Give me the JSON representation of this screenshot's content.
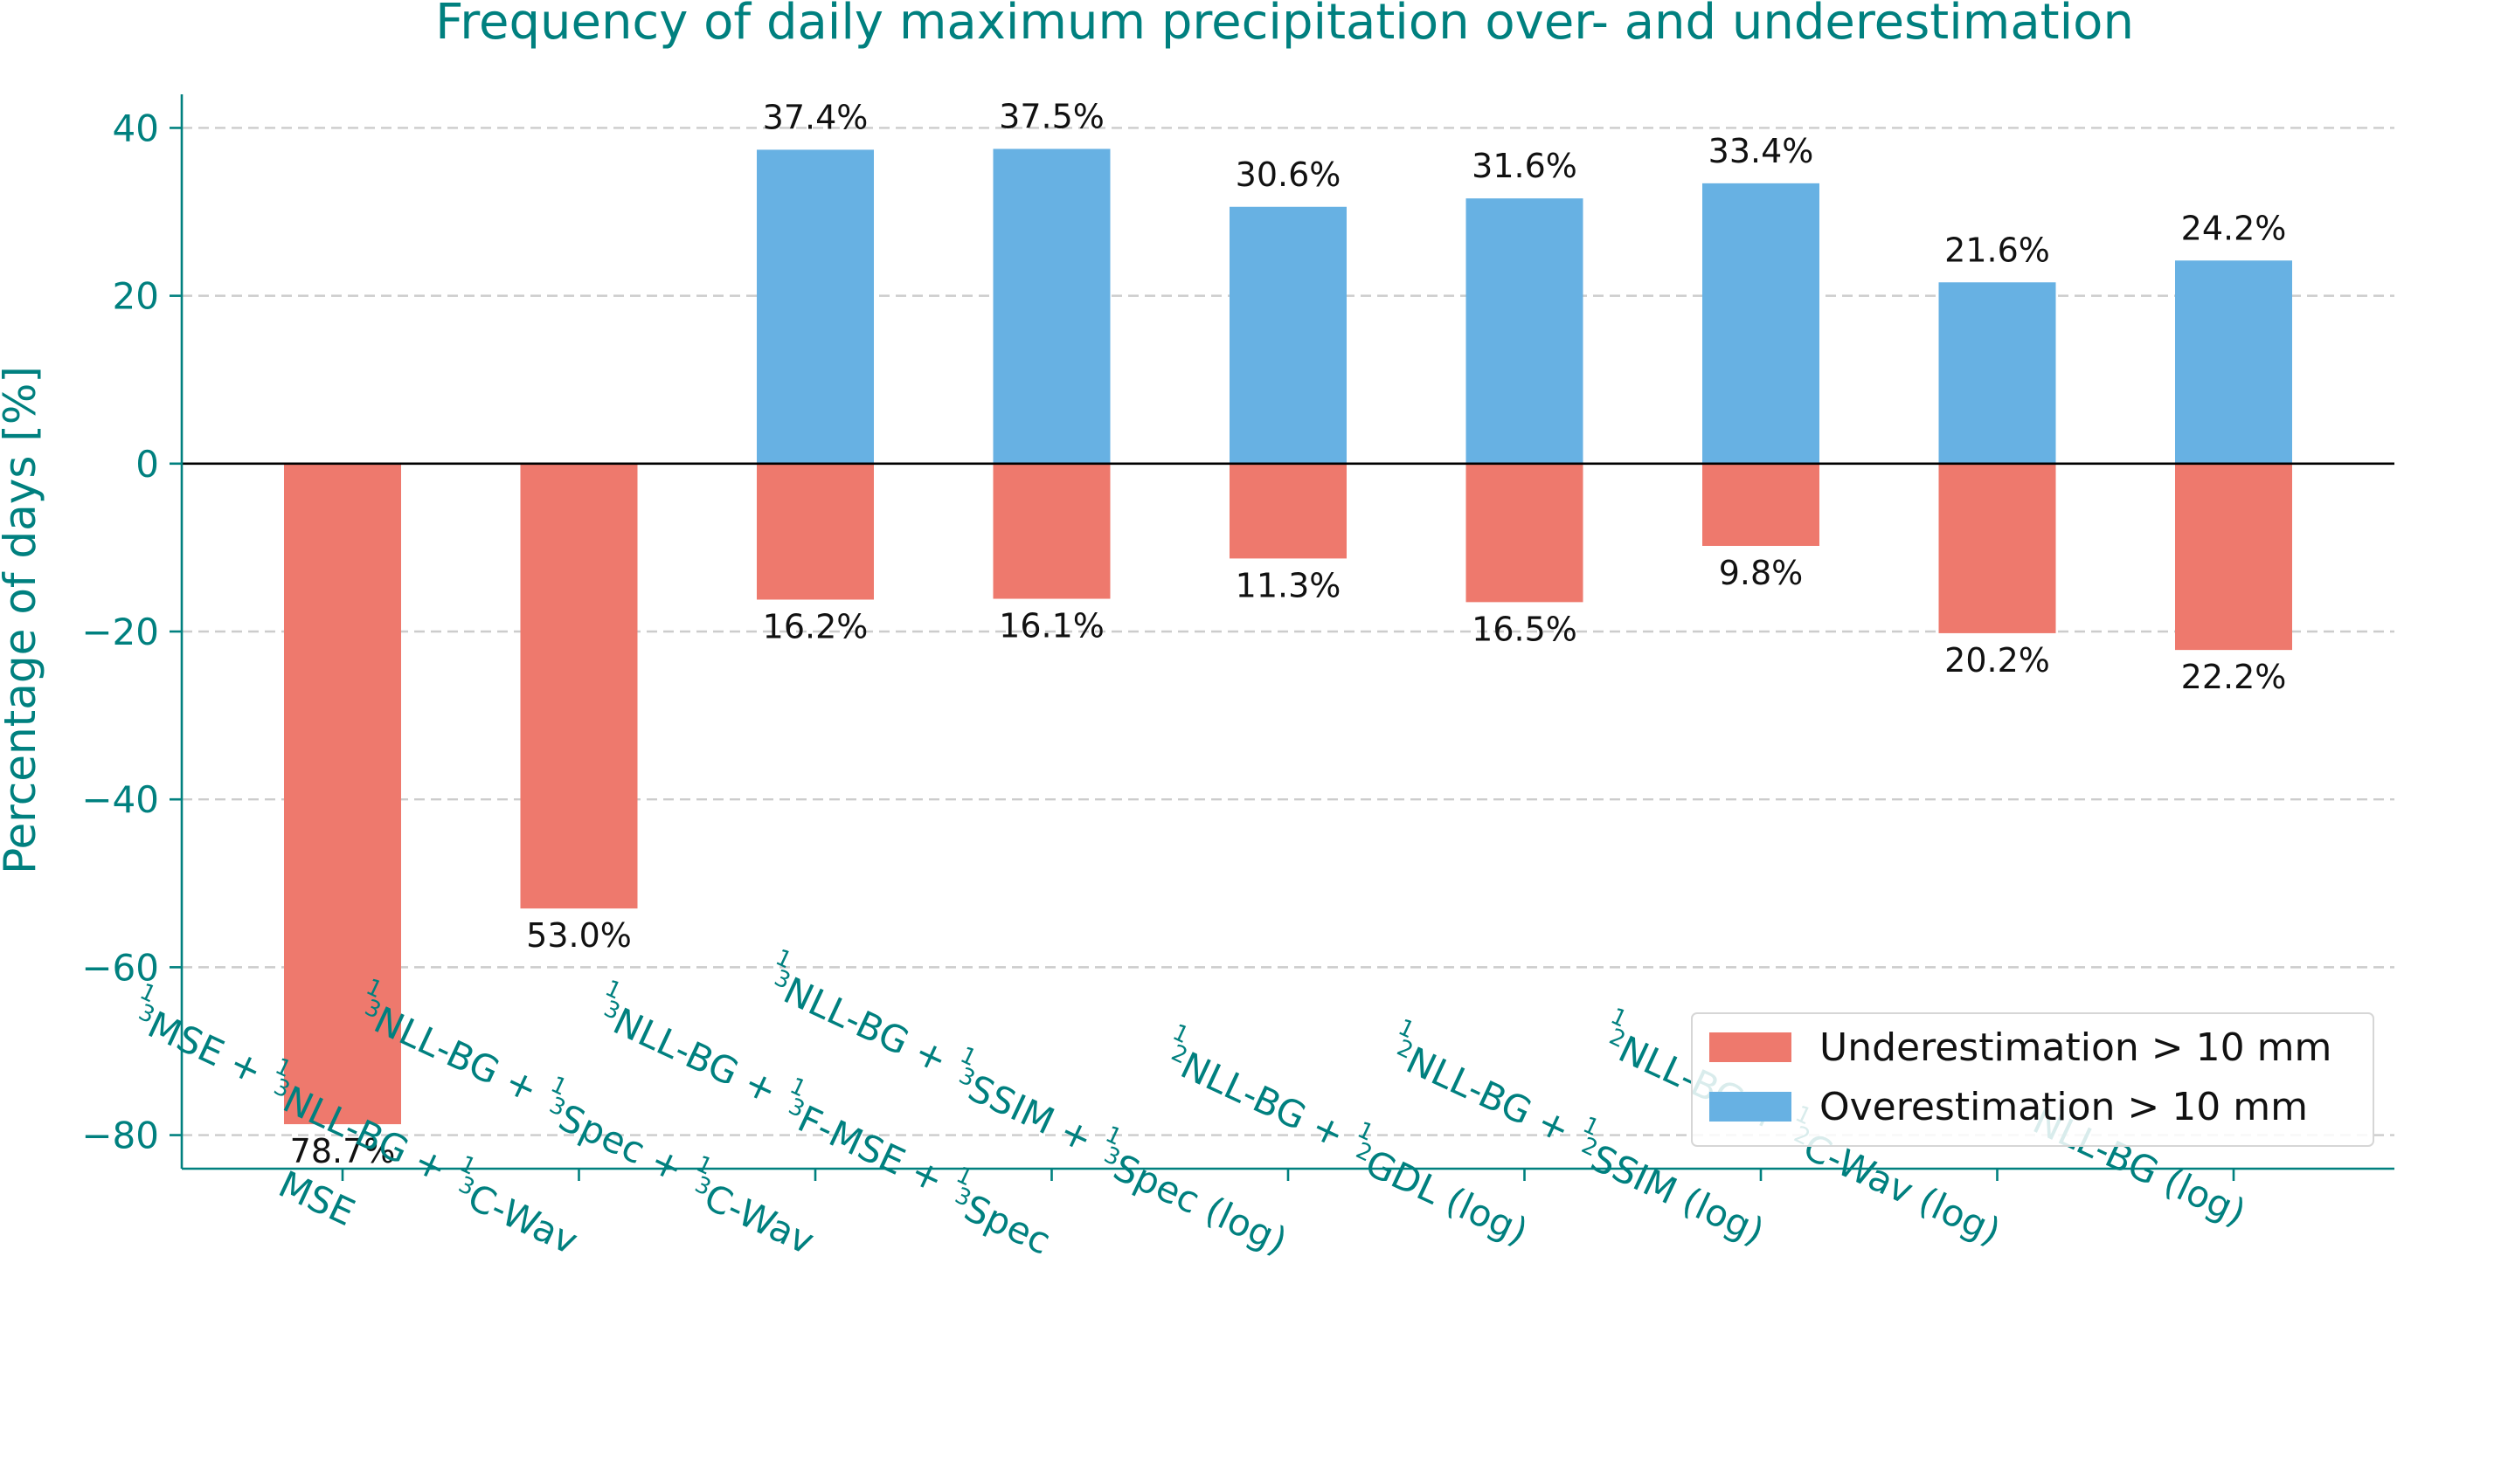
{
  "chart_data": {
    "type": "bar",
    "title": "Frequency of daily maximum precipitation over- and underestimation",
    "xlabel": "",
    "ylabel": "Percentage of days [%]",
    "ylim": [
      -84,
      44
    ],
    "yticks": [
      40,
      20,
      0,
      -20,
      -40,
      -60,
      -80
    ],
    "ytick_labels": [
      "40",
      "20",
      "0",
      "−20",
      "−40",
      "−60",
      "−80"
    ],
    "grid": "y-dashed",
    "legend_position": "lower-right",
    "colors": {
      "underestimation": "#ee796d",
      "overestimation": "#67b1e3",
      "accent": "#00807f"
    },
    "categories": [
      [
        {
          "t": "MSE"
        }
      ],
      [
        {
          "f": "1/3"
        },
        {
          "t": "MSE + "
        },
        {
          "f": "1/3"
        },
        {
          "t": "NLL-BG + "
        },
        {
          "f": "1/3"
        },
        {
          "t": "C-Wav"
        }
      ],
      [
        {
          "f": "1/3"
        },
        {
          "t": "NLL-BG + "
        },
        {
          "f": "1/3"
        },
        {
          "t": "Spec + "
        },
        {
          "f": "1/3"
        },
        {
          "t": "C-Wav"
        }
      ],
      [
        {
          "f": "1/3"
        },
        {
          "t": "NLL-BG + "
        },
        {
          "f": "1/3"
        },
        {
          "t": "F-MSE + "
        },
        {
          "f": "1/3"
        },
        {
          "t": "Spec"
        }
      ],
      [
        {
          "f": "1/3"
        },
        {
          "t": "NLL-BG + "
        },
        {
          "f": "1/3"
        },
        {
          "t": "SSIM + "
        },
        {
          "f": "1/3"
        },
        {
          "t": "Spec (log)"
        }
      ],
      [
        {
          "f": "1/2"
        },
        {
          "t": "NLL-BG + "
        },
        {
          "f": "1/2"
        },
        {
          "t": "GDL (log)"
        }
      ],
      [
        {
          "f": "1/2"
        },
        {
          "t": "NLL-BG + "
        },
        {
          "f": "1/2"
        },
        {
          "t": "SSIM (log)"
        }
      ],
      [
        {
          "f": "1/2"
        },
        {
          "t": "NLL-BG + "
        },
        {
          "f": "1/2"
        },
        {
          "t": "C-Wav (log)"
        }
      ],
      [
        {
          "t": "NLL-BG (log)"
        }
      ]
    ],
    "series": [
      {
        "name": "Underestimation > 10 mm",
        "values": [
          -78.7,
          -53.0,
          -16.2,
          -16.1,
          -11.3,
          -16.5,
          -9.8,
          -20.2,
          -22.2
        ],
        "labels": [
          "78.7%",
          "53.0%",
          "16.2%",
          "16.1%",
          "11.3%",
          "16.5%",
          "9.8%",
          "20.2%",
          "22.2%"
        ]
      },
      {
        "name": "Overestimation > 10 mm",
        "values": [
          0,
          0,
          37.4,
          37.5,
          30.6,
          31.6,
          33.4,
          21.6,
          24.2
        ],
        "labels": [
          "",
          "",
          "37.4%",
          "37.5%",
          "30.6%",
          "31.6%",
          "33.4%",
          "21.6%",
          "24.2%"
        ]
      }
    ]
  }
}
